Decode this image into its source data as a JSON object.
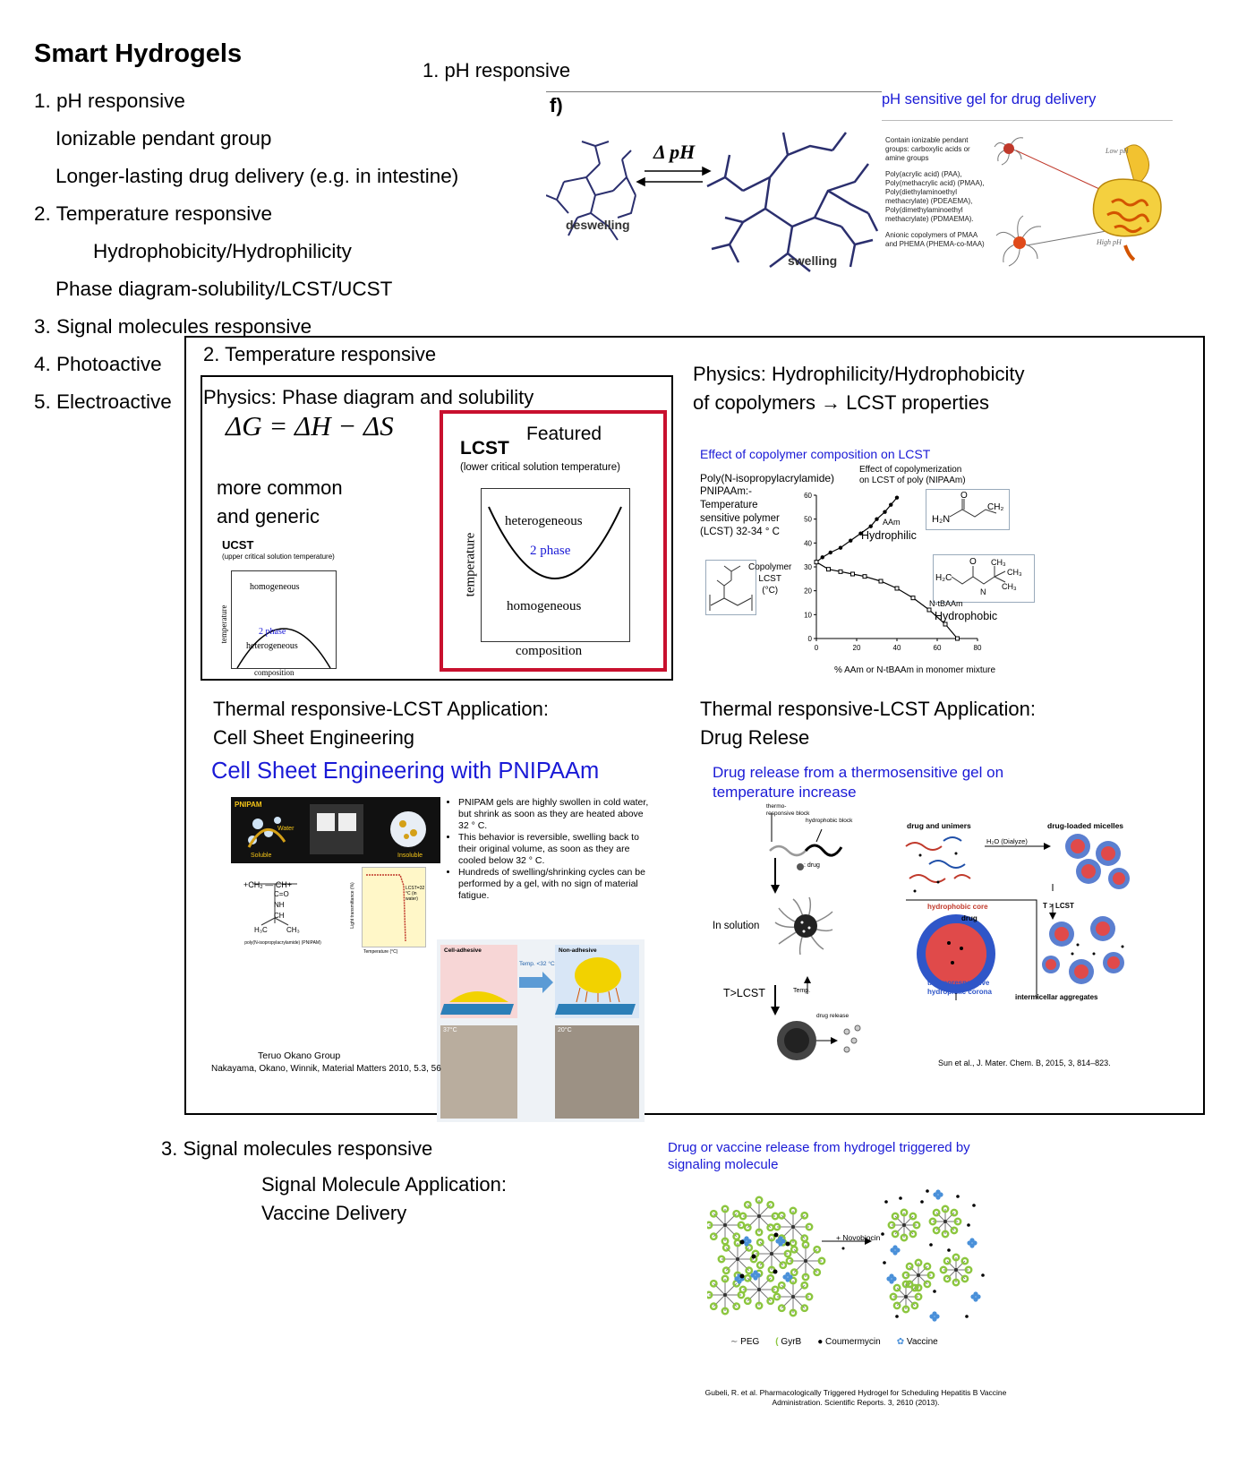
{
  "title": "Smart Hydrogels",
  "outline": [
    "1. pH responsive",
    "Ionizable pendant group",
    "Longer-lasting drug delivery (e.g. in intestine)",
    "2. Temperature responsive",
    "Hydrophobicity/Hydrophilicity",
    "Phase diagram-solubility/LCST/UCST",
    "3. Signal molecules responsive",
    "4. Photoactive",
    "5. Electroactive"
  ],
  "ph": {
    "heading": "1. pH responsive",
    "fig_label": "f)",
    "delta_ph": "Δ pH",
    "deswelling": "deswelling",
    "swelling": "swelling",
    "sensitive_title": "pH sensitive gel for drug delivery",
    "sensitive_text1": "Contain ionizable pendant groups: carboxylic acids or amine groups",
    "sensitive_text2": "Poly(acrylic acid) (PAA), Poly(methacrylic acid) (PMAA), Poly(diethylaminoethyl methacrylate) (PDEAEMA), Poly(dimethylaminoethyl methacrylate) (PDMAEMA).",
    "sensitive_text3": "Anionic copolymers of PMAA and PHEMA (PHEMA-co-MAA)",
    "low_ph": "Low pH",
    "high_ph": "High pH"
  },
  "temp": {
    "heading": "2. Temperature responsive",
    "phase_title": "Physics: Phase diagram and solubility",
    "equation": "ΔG = ΔH − ΔS",
    "more_common": "more common",
    "and_generic": "and generic",
    "ucst": "UCST",
    "ucst_full": "(upper critical solution temperature)",
    "ucst_homogeneous": "homogeneous",
    "ucst_2phase": "2 phase",
    "ucst_heterogeneous": "heterogeneous",
    "temperature_axis": "temperature",
    "composition_axis": "composition",
    "lcst": "LCST",
    "featured": "Featured",
    "lcst_full": "(lower critical solution temperature)",
    "lcst_heterogeneous": "heterogeneous",
    "lcst_2phase": "2 phase",
    "lcst_homogeneous": "homogeneous",
    "hydro_title1": "Physics: Hydrophilicity/Hydrophobicity",
    "hydro_title2": "of copolymers → LCST properties",
    "cell_title1": "Thermal responsive-LCST Application:",
    "cell_title2": "Cell Sheet Engineering",
    "drug_title1": "Thermal responsive-LCST Application:",
    "drug_title2": "Drug Relese"
  },
  "copolymer": {
    "effect_title": "Effect of copolymer composition on LCST",
    "pnipaam_lines": [
      "Poly(N-isopropylacrylamide)",
      "PNIPAAm:-",
      "Temperature",
      "sensitive polymer",
      "(LCST) 32-34 ° C"
    ],
    "effect_sub1": "Effect of copolymerization",
    "effect_sub2": "on LCST of poly (NIPAAm)",
    "copolymer_lcst": [
      "Copolymer",
      "LCST",
      "(°C)"
    ],
    "hydrophilic": "Hydrophilic",
    "hydrophobic": "Hydrophobic",
    "aam": "AAm",
    "ntbaam": "N-tBAAm",
    "xlabel": "% AAm or N-tBAAm in monomer mixture"
  },
  "chart_data": {
    "type": "line",
    "xlabel": "% AAm or N-tBAAm in monomer mixture",
    "ylabel": "Copolymer LCST (°C)",
    "xlim": [
      0,
      80
    ],
    "ylim": [
      0,
      60
    ],
    "xticks": [
      0,
      20,
      40,
      60,
      80
    ],
    "yticks": [
      0,
      10,
      20,
      30,
      40,
      50,
      60
    ],
    "series": [
      {
        "name": "AAm",
        "x": [
          0,
          3,
          7,
          12,
          17,
          22,
          27,
          30,
          34,
          37,
          40
        ],
        "y": [
          32,
          34,
          36,
          38,
          41,
          44,
          47,
          50,
          53,
          56,
          59
        ]
      },
      {
        "name": "N-tBAAm",
        "x": [
          0,
          6,
          12,
          18,
          24,
          32,
          40,
          48,
          56,
          64,
          70
        ],
        "y": [
          32,
          29,
          28,
          27,
          26,
          24,
          21,
          17,
          12,
          6,
          0
        ]
      }
    ]
  },
  "cell": {
    "title": "Cell Sheet Engineering with PNIPAAm",
    "bullets": [
      "PNIPAM gels are highly swollen in cold water, but shrink as soon as they are heated above 32 ° C.",
      "This behavior is reversible, swelling back to their original volume, as soon as they are cooled below 32 ° C.",
      "Hundreds of swelling/shrinking cycles can be performed by a gel, with no sign of material fatigue."
    ],
    "pnipam": "PNIPAM",
    "water": "Water",
    "soluble": "Soluble",
    "insoluble": "Insoluble",
    "polymer_name": "poly(N-isopropylacrylamide) (PNIPAM)",
    "lcst_note": "LCST=32 °C (in water)",
    "temperature_c": "Temperature (°C)",
    "light_trans": "Light transmittance (%)",
    "cell_adhesive": "Cell-adhesive",
    "non_adhesive": "Non-adhesive",
    "temp_lt": "Temp. <32 °C",
    "t37": "37°C",
    "t20": "20°C",
    "group": "Teruo Okano Group",
    "citation": "Nakayama, Okano, Winnik, Material Matters 2010, 5.3, 56"
  },
  "drug": {
    "title1": "Drug release from a thermosensitive gel on",
    "title2": "temperature increase",
    "thermo_block": "thermo-responsive block",
    "hydrophobic_block": "hydrophobic block",
    "drug_label": ": drug",
    "in_solution": "In solution",
    "t_lcst": "T>LCST",
    "temp": "Temp.",
    "drug_release": "drug release",
    "drug_unimers": "drug and unimers",
    "h2o": "H₂O (Dialyze)",
    "loaded_micelles": "drug-loaded micelles",
    "hydrophobic_core": "hydrophobic core",
    "drug": "drug",
    "thermo_corona": "thermoresponsive hydrophilic corona",
    "t_gt_lcst": "T > LCST",
    "intermicellar": "intermicellar aggregates",
    "citation": "Sun et al., J. Mater. Chem. B, 2015, 3, 814–823."
  },
  "signal": {
    "heading": "3. Signal molecules responsive",
    "app1": "Signal Molecule Application:",
    "app2": "Vaccine Delivery",
    "fig_title1": "Drug or vaccine release from hydrogel triggered by",
    "fig_title2": "signaling molecule",
    "novobiocin": "+ Novobiocin",
    "legend": [
      "PEG",
      "GyrB",
      "Coumermycin",
      "Vaccine"
    ],
    "citation1": "Gubeli, R. et al.  Pharmacologically Triggered Hydrogel for Scheduling Hepatitis B Vaccine",
    "citation2": "Administration. Scientific Reports. 3, 2610 (2013)."
  },
  "colors": {
    "accent_red": "#c8102e",
    "title_blue": "#1a1ad6",
    "polymer_navy": "#2b2f6e",
    "gel_green": "#8cc63f"
  }
}
